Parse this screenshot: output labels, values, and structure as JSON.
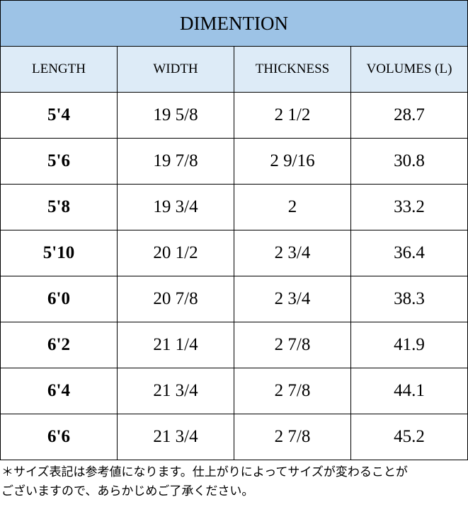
{
  "table": {
    "title": "DIMENTION",
    "header": [
      "LENGTH",
      "WIDTH",
      "THICKNESS",
      "VOLUMES (L)"
    ],
    "rows": [
      [
        "5'4",
        "19 5/8",
        "2 1/2",
        "28.7"
      ],
      [
        "5'6",
        "19 7/8",
        "2 9/16",
        "30.8"
      ],
      [
        "5'8",
        "19 3/4",
        "2",
        "33.2"
      ],
      [
        "5'10",
        "20 1/2",
        "2 3/4",
        "36.4"
      ],
      [
        "6'0",
        "20 7/8",
        "2 3/4",
        "38.3"
      ],
      [
        "6'2",
        "21 1/4",
        "2 7/8",
        "41.9"
      ],
      [
        "6'4",
        "21 3/4",
        "2 7/8",
        "44.1"
      ],
      [
        "6'6",
        "21 3/4",
        "2 7/8",
        "45.2"
      ]
    ]
  },
  "note": {
    "lines": [
      "＊サイズ表記は参考値になります。仕上がりによってサイズが変わることが",
      "ございますので、あらかじめご了承ください。"
    ]
  }
}
